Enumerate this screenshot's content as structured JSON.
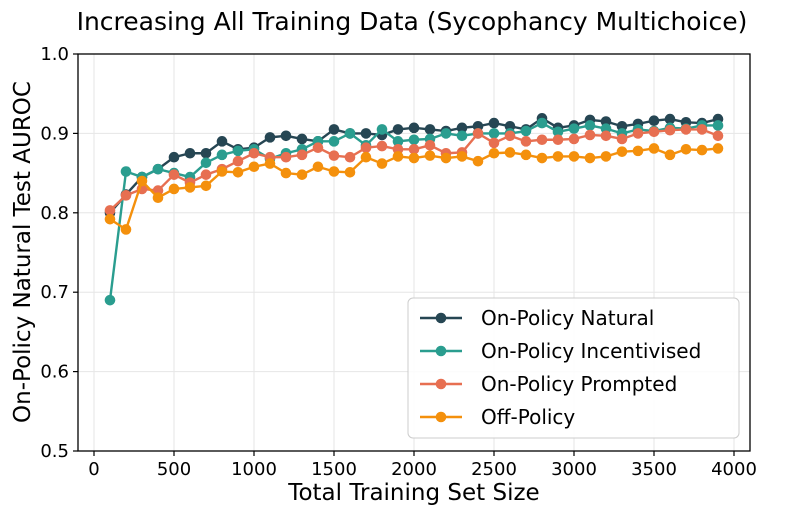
{
  "chart_data": {
    "type": "line",
    "title": "Increasing All Training Data (Sycophancy Multichoice)",
    "xlabel": "Total Training Set Size",
    "ylabel": "On-Policy Natural Test AUROC",
    "xlim": [
      -100,
      4100
    ],
    "ylim": [
      0.5,
      1.0
    ],
    "xticks": [
      0,
      500,
      1000,
      1500,
      2000,
      2500,
      3000,
      3500,
      4000
    ],
    "yticks": [
      0.5,
      0.6,
      0.7,
      0.8,
      0.9,
      1.0
    ],
    "xtick_labels": [
      "0",
      "500",
      "1000",
      "1500",
      "2000",
      "2500",
      "3000",
      "3500",
      "4000"
    ],
    "ytick_labels": [
      "0.5",
      "0.6",
      "0.7",
      "0.8",
      "0.9",
      "1.0"
    ],
    "grid": true,
    "legend_position": "bottom-right",
    "x": [
      100,
      200,
      300,
      400,
      500,
      600,
      700,
      800,
      900,
      1000,
      1100,
      1200,
      1300,
      1400,
      1500,
      1600,
      1700,
      1800,
      1900,
      2000,
      2100,
      2200,
      2300,
      2400,
      2500,
      2600,
      2700,
      2800,
      2900,
      3000,
      3100,
      3200,
      3300,
      3400,
      3500,
      3600,
      3700,
      3800,
      3900
    ],
    "series": [
      {
        "name": "On-Policy Natural",
        "color": "#264653",
        "values": [
          0.8,
          0.823,
          0.845,
          0.855,
          0.87,
          0.875,
          0.875,
          0.89,
          0.88,
          0.882,
          0.895,
          0.897,
          0.893,
          0.89,
          0.905,
          0.9,
          0.9,
          0.898,
          0.905,
          0.907,
          0.905,
          0.903,
          0.907,
          0.909,
          0.913,
          0.909,
          0.905,
          0.919,
          0.907,
          0.91,
          0.917,
          0.915,
          0.909,
          0.912,
          0.916,
          0.918,
          0.914,
          0.913,
          0.918
        ]
      },
      {
        "name": "On-Policy Incentivised",
        "color": "#2a9d8f",
        "values": [
          0.69,
          0.852,
          0.845,
          0.855,
          0.85,
          0.845,
          0.863,
          0.873,
          0.878,
          0.88,
          0.868,
          0.875,
          0.88,
          0.89,
          0.89,
          0.9,
          0.885,
          0.905,
          0.89,
          0.892,
          0.893,
          0.9,
          0.897,
          0.9,
          0.9,
          0.9,
          0.903,
          0.913,
          0.902,
          0.906,
          0.91,
          0.906,
          0.9,
          0.905,
          0.903,
          0.907,
          0.906,
          0.91,
          0.91
        ]
      },
      {
        "name": "On-Policy Prompted",
        "color": "#e76f51",
        "values": [
          0.803,
          0.822,
          0.83,
          0.828,
          0.848,
          0.838,
          0.848,
          0.855,
          0.865,
          0.875,
          0.87,
          0.87,
          0.873,
          0.882,
          0.872,
          0.87,
          0.882,
          0.884,
          0.88,
          0.88,
          0.885,
          0.875,
          0.876,
          0.9,
          0.888,
          0.897,
          0.89,
          0.892,
          0.892,
          0.893,
          0.898,
          0.897,
          0.893,
          0.9,
          0.902,
          0.904,
          0.905,
          0.905,
          0.897
        ]
      },
      {
        "name": "Off-Policy",
        "color": "#f4900c",
        "values": [
          0.792,
          0.779,
          0.84,
          0.819,
          0.83,
          0.832,
          0.834,
          0.852,
          0.851,
          0.858,
          0.862,
          0.85,
          0.848,
          0.858,
          0.852,
          0.851,
          0.87,
          0.862,
          0.871,
          0.869,
          0.872,
          0.869,
          0.871,
          0.865,
          0.875,
          0.876,
          0.873,
          0.869,
          0.871,
          0.871,
          0.869,
          0.871,
          0.877,
          0.878,
          0.881,
          0.873,
          0.88,
          0.879,
          0.881
        ]
      }
    ]
  }
}
